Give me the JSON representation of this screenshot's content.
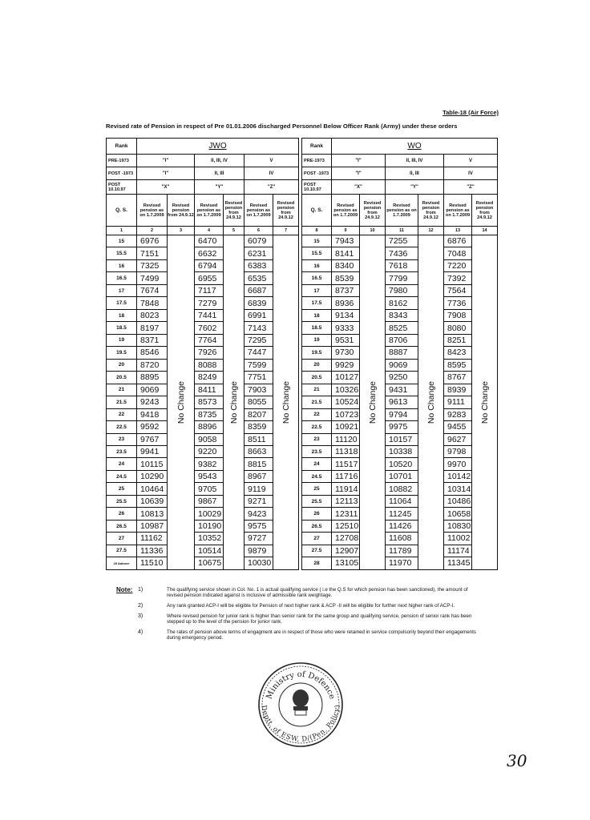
{
  "header": {
    "table_ref": "Table-18 (Air Force)",
    "title": "Revised rate of Pension in respect of Pre 01.01.2006 discharged Personnel Below Officer Rank (Army) under these orders"
  },
  "halves": [
    {
      "rank_label": "Rank",
      "rank": "JWO",
      "pre_1973_label": "PRE-1973",
      "post_1973_label": "POST -1973",
      "post_1997_label": "POST 10.10.97",
      "qs_label": "Q. S.",
      "col_numbers": [
        "1",
        "2",
        "3",
        "4",
        "5",
        "6",
        "7"
      ],
      "qs": [
        "15",
        "15.5",
        "16",
        "16.5",
        "17",
        "17.5",
        "18",
        "18.5",
        "19",
        "19.5",
        "20",
        "20.5",
        "21",
        "21.5",
        "22",
        "22.5",
        "23",
        "23.5",
        "24",
        "24.5",
        "25",
        "25.5",
        "26",
        "26.5",
        "27",
        "27.5",
        "28 &above"
      ],
      "groups": [
        {
          "pre_1973": "\"I\"",
          "post_1973": "\"I\"",
          "post_1997": "\"X\"",
          "head_revised": "Revised pension as on 1.7.2009",
          "head_from": "Revised pension from 24.9.12",
          "no_change": "No Change",
          "pension": [
            "6976",
            "7151",
            "7325",
            "7499",
            "7674",
            "7848",
            "8023",
            "8197",
            "8371",
            "8546",
            "8720",
            "8895",
            "9069",
            "9243",
            "9418",
            "9592",
            "9767",
            "9941",
            "10115",
            "10290",
            "10464",
            "10639",
            "10813",
            "10987",
            "11162",
            "11336",
            "11510"
          ]
        },
        {
          "pre_1973": "II, III, IV",
          "post_1973": "II, III",
          "post_1997": "\"Y\"",
          "head_revised": "Revised pension as on 1.7.2009",
          "head_from": "Revised pension from 24.9.12",
          "no_change": "No Change",
          "pension": [
            "6470",
            "6632",
            "6794",
            "6955",
            "7117",
            "7279",
            "7441",
            "7602",
            "7764",
            "7926",
            "8088",
            "8249",
            "8411",
            "8573",
            "8735",
            "8896",
            "9058",
            "9220",
            "9382",
            "9543",
            "9705",
            "9867",
            "10029",
            "10190",
            "10352",
            "10514",
            "10675"
          ]
        },
        {
          "pre_1973": "V",
          "post_1973": "IV",
          "post_1997": "\"Z\"",
          "head_revised": "Revised pension as on 1.7.2009",
          "head_from": "Revised pension from 24.9.12",
          "no_change": "No Change",
          "pension": [
            "6079",
            "6231",
            "6383",
            "6535",
            "6687",
            "6839",
            "6991",
            "7143",
            "7295",
            "7447",
            "7599",
            "7751",
            "7903",
            "8055",
            "8207",
            "8359",
            "8511",
            "8663",
            "8815",
            "8967",
            "9119",
            "9271",
            "9423",
            "9575",
            "9727",
            "9879",
            "10030"
          ]
        }
      ]
    },
    {
      "rank_label": "Rank",
      "rank": "WO",
      "pre_1973_label": "PRE-1973",
      "post_1973_label": "POST -1973",
      "post_1997_label": "POST 10.10.97",
      "qs_label": "Q. S.",
      "col_numbers": [
        "8",
        "9",
        "10",
        "11",
        "12",
        "13",
        "14"
      ],
      "qs": [
        "15",
        "15.5",
        "16",
        "16.5",
        "17",
        "17.5",
        "18",
        "18.5",
        "19",
        "19.5",
        "20",
        "20.5",
        "21",
        "21.5",
        "22",
        "22.5",
        "23",
        "23.5",
        "24",
        "24.5",
        "25",
        "25.5",
        "26",
        "26.5",
        "27",
        "27.5",
        "28"
      ],
      "groups": [
        {
          "pre_1973": "\"I\"",
          "post_1973": "\"I\"",
          "post_1997": "\"X\"",
          "head_revised": "Revised pension as on 1.7.2009",
          "head_from": "Revised pension from 24.9.12",
          "no_change": "No Change",
          "pension": [
            "7943",
            "8141",
            "8340",
            "8539",
            "8737",
            "8936",
            "9134",
            "9333",
            "9531",
            "9730",
            "9929",
            "10127",
            "10326",
            "10524",
            "10723",
            "10921",
            "11120",
            "11318",
            "11517",
            "11716",
            "11914",
            "12113",
            "12311",
            "12510",
            "12708",
            "12907",
            "13105"
          ]
        },
        {
          "pre_1973": "II, III, IV",
          "post_1973": "II, III",
          "post_1997": "\"Y\"",
          "head_revised": "Revised pension as on 1.7.2009",
          "head_from": "Revised pension from 24.9.12",
          "no_change": "No Change",
          "pension": [
            "7255",
            "7436",
            "7618",
            "7799",
            "7980",
            "8162",
            "8343",
            "8525",
            "8706",
            "8887",
            "9069",
            "9250",
            "9431",
            "9613",
            "9794",
            "9975",
            "10157",
            "10338",
            "10520",
            "10701",
            "10882",
            "11064",
            "11245",
            "11426",
            "11608",
            "11789",
            "11970"
          ]
        },
        {
          "pre_1973": "V",
          "post_1973": "IV",
          "post_1997": "\"Z\"",
          "head_revised": "Revised pension as on 1.7.2009",
          "head_from": "Revised pension from 24.9.12",
          "no_change": "No Change",
          "pension": [
            "6876",
            "7048",
            "7220",
            "7392",
            "7564",
            "7736",
            "7908",
            "8080",
            "8251",
            "8423",
            "8595",
            "8767",
            "8939",
            "9111",
            "9283",
            "9455",
            "9627",
            "9798",
            "9970",
            "10142",
            "10314",
            "10486",
            "10658",
            "10830",
            "11002",
            "11174",
            "11345"
          ]
        }
      ]
    }
  ],
  "notes": {
    "label": "Note:",
    "items": [
      {
        "number": "1)",
        "text": "The qualifying service shown in Col. No. 1 is actual qualifying service ( i.e the Q.S for which pension has been sanctioned), the amount of revised pension indicated against is inclusive of admissible rank weightage."
      },
      {
        "number": "2)",
        "text": "Any rank granted ACP-I will be eligible for Pension of next higher rank & ACP -II will be eligible for further next higher rank of ACP-I."
      },
      {
        "number": "3)",
        "text": "Where revised pension for junior rank is higher than senior rank for the same group and qualifying service, pension of senior rank has been stepped up to the level of the pension for junior rank."
      },
      {
        "number": "4)",
        "text": "The rates of pension above terms of engagment are in respect of those who were retained in service compulsorily beyond their engagements during emergency period."
      }
    ]
  },
  "stamp": {
    "top": "Ministry of Defence",
    "bottom": "Deptt. of ESW, D/(Pen. Policy)"
  },
  "page_number": "30"
}
